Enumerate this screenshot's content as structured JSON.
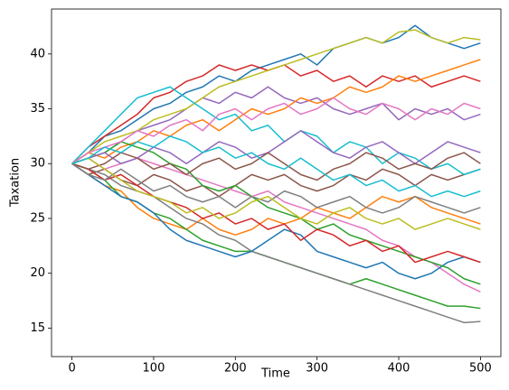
{
  "chart_data": {
    "type": "line",
    "x_label": "Time",
    "y_label": "Taxation",
    "x": [
      0,
      20,
      40,
      60,
      80,
      100,
      120,
      140,
      160,
      180,
      200,
      220,
      240,
      260,
      280,
      300,
      320,
      340,
      360,
      380,
      400,
      420,
      440,
      460,
      480,
      500
    ],
    "xlim": [
      -25,
      525
    ],
    "xticks": [
      0,
      100,
      200,
      300,
      400,
      500
    ],
    "ylim": [
      12.4,
      44.1
    ],
    "yticks": [
      15,
      20,
      25,
      30,
      35,
      40
    ],
    "series": [
      {
        "color": "#1f77b4",
        "values": [
          30,
          31,
          32.5,
          33,
          34,
          35,
          35.5,
          36.5,
          37,
          38,
          37.5,
          38.5,
          39,
          39.5,
          40,
          39,
          40.5,
          41,
          41.5,
          41,
          41.5,
          42.6,
          41.5,
          41,
          40.5,
          41
        ]
      },
      {
        "color": "#ff7f0e",
        "values": [
          30,
          29,
          28,
          27.5,
          26,
          25,
          24.5,
          24,
          25,
          24,
          23.5,
          24,
          25,
          24.5,
          25,
          26,
          25.5,
          25,
          26,
          27,
          26.5,
          27,
          26,
          25.5,
          25,
          24.5
        ]
      },
      {
        "color": "#2ca02c",
        "values": [
          30,
          29.5,
          28.5,
          27,
          26.5,
          25.5,
          25,
          24,
          23,
          22.5,
          22,
          22,
          21.5,
          21,
          20.5,
          20,
          19.5,
          19,
          19.5,
          19,
          18.5,
          18,
          17.5,
          17,
          17,
          16.8
        ]
      },
      {
        "color": "#d62728",
        "values": [
          30,
          31.5,
          32.5,
          33.5,
          34.5,
          36,
          36.5,
          37.5,
          38,
          39,
          38.5,
          39,
          38.5,
          39,
          38,
          38.5,
          37.5,
          38,
          37,
          38,
          37.5,
          38,
          37,
          37.5,
          38,
          37.5
        ]
      },
      {
        "color": "#9467bd",
        "values": [
          30,
          30.5,
          31,
          32,
          33,
          33.5,
          34,
          35,
          36,
          35.5,
          36.5,
          36,
          37,
          36,
          35.5,
          36,
          35,
          34.5,
          35,
          35.5,
          34,
          35,
          34.5,
          35,
          34,
          34.5
        ]
      },
      {
        "color": "#8c564b",
        "values": [
          30,
          29,
          29.5,
          28.5,
          28,
          29,
          28.5,
          27.5,
          28,
          27,
          28,
          29,
          28.5,
          29,
          28,
          27.5,
          28,
          29,
          28.5,
          29.5,
          29,
          28,
          29,
          28.5,
          29,
          29.5
        ]
      },
      {
        "color": "#e377c2",
        "values": [
          30,
          30.5,
          29.5,
          30,
          30.5,
          30,
          29.5,
          29,
          28.5,
          28,
          27.5,
          27,
          27.5,
          26.5,
          26,
          25.5,
          25,
          24.5,
          24,
          23,
          22.5,
          21.5,
          21,
          20,
          19,
          18.3
        ]
      },
      {
        "color": "#7f7f7f",
        "values": [
          30,
          29.5,
          29,
          28,
          27.5,
          27,
          26,
          25,
          24.5,
          23.5,
          23,
          22,
          21.5,
          21,
          20.5,
          20,
          19.5,
          19,
          18.5,
          18,
          17.5,
          17,
          16.5,
          16,
          15.5,
          15.6
        ]
      },
      {
        "color": "#bcbd22",
        "values": [
          30,
          31,
          32,
          32.5,
          33,
          34,
          34.5,
          35,
          36,
          37,
          37.5,
          38,
          38.5,
          39,
          39.5,
          40,
          40.5,
          41,
          41.5,
          41,
          42,
          42.2,
          41.5,
          41,
          41.5,
          41.3
        ]
      },
      {
        "color": "#17becf",
        "values": [
          30,
          31.5,
          33,
          34.5,
          36,
          36.5,
          37,
          36,
          35,
          34,
          34.5,
          33,
          33.5,
          32,
          33,
          32.5,
          31,
          32,
          31.5,
          30,
          31,
          30.5,
          29.5,
          30,
          29,
          29.5
        ]
      },
      {
        "color": "#1f77b4",
        "values": [
          30,
          29,
          28,
          27,
          26.5,
          25.5,
          24,
          23,
          22.5,
          22,
          21.5,
          22,
          23,
          24,
          23.5,
          22,
          21.5,
          21,
          20.5,
          21,
          20,
          19.5,
          20,
          21,
          21.5,
          21
        ]
      },
      {
        "color": "#ff7f0e",
        "values": [
          30,
          31,
          30.5,
          31.5,
          32,
          33,
          32.5,
          33.5,
          34,
          33,
          34,
          35,
          34.5,
          35,
          36,
          35.5,
          36,
          37,
          36.5,
          37,
          38,
          37.5,
          38,
          38.5,
          39,
          39.5
        ]
      },
      {
        "color": "#2ca02c",
        "values": [
          30,
          30.5,
          31,
          32,
          31.5,
          31,
          30,
          29.5,
          28,
          27.5,
          28,
          27,
          26,
          25.5,
          25,
          24,
          24.5,
          23.5,
          23,
          22.5,
          22,
          21.5,
          21,
          20.5,
          19.5,
          19
        ]
      },
      {
        "color": "#d62728",
        "values": [
          30,
          29.5,
          28.5,
          29,
          28,
          27,
          26.5,
          26,
          25,
          25.5,
          24.5,
          25,
          24,
          24.5,
          23,
          24,
          23.5,
          22.5,
          23,
          22,
          22.5,
          21,
          21.5,
          22,
          21.5,
          21
        ]
      },
      {
        "color": "#9467bd",
        "values": [
          30,
          30.5,
          31,
          30,
          30.5,
          31.5,
          31,
          30,
          31,
          32,
          31.5,
          30.5,
          31,
          32,
          33,
          32,
          31,
          30.5,
          31.5,
          32,
          31,
          30,
          31,
          32,
          31.5,
          31
        ]
      },
      {
        "color": "#8c564b",
        "values": [
          30,
          29.5,
          30,
          31,
          30.5,
          29.5,
          30,
          29,
          30,
          30.5,
          29.5,
          30,
          31,
          30,
          29,
          28.5,
          29.5,
          30,
          31,
          30.5,
          29.5,
          30,
          29.5,
          30.5,
          31,
          30
        ]
      },
      {
        "color": "#e377c2",
        "values": [
          30,
          31,
          31.5,
          32,
          33,
          32.5,
          33.5,
          34,
          33,
          34.5,
          35,
          34,
          35,
          35.5,
          34.5,
          35,
          36,
          35,
          34.5,
          35.5,
          35,
          34,
          35,
          34.5,
          35.5,
          35
        ]
      },
      {
        "color": "#7f7f7f",
        "values": [
          30,
          29,
          28.5,
          29.5,
          28.5,
          27.5,
          28,
          27,
          26.5,
          27,
          26,
          27,
          26.5,
          27.5,
          27,
          26,
          26.5,
          27,
          26,
          25.5,
          26,
          27,
          26.5,
          26,
          25.5,
          26
        ]
      },
      {
        "color": "#bcbd22",
        "values": [
          30,
          30.5,
          29.5,
          28.5,
          27.5,
          27,
          26.5,
          25.5,
          26,
          25,
          25.5,
          26.5,
          27,
          26,
          25,
          24.5,
          25.5,
          26,
          25,
          24.5,
          25,
          24,
          24.5,
          25,
          24.5,
          24
        ]
      },
      {
        "color": "#17becf",
        "values": [
          30,
          30.5,
          31.5,
          31,
          32,
          31.5,
          32.5,
          32,
          31,
          31.5,
          30.5,
          31,
          30,
          29.5,
          30.5,
          29.5,
          28.5,
          29,
          28,
          28.5,
          27.5,
          28,
          27,
          27.5,
          27,
          27.5
        ]
      }
    ]
  }
}
